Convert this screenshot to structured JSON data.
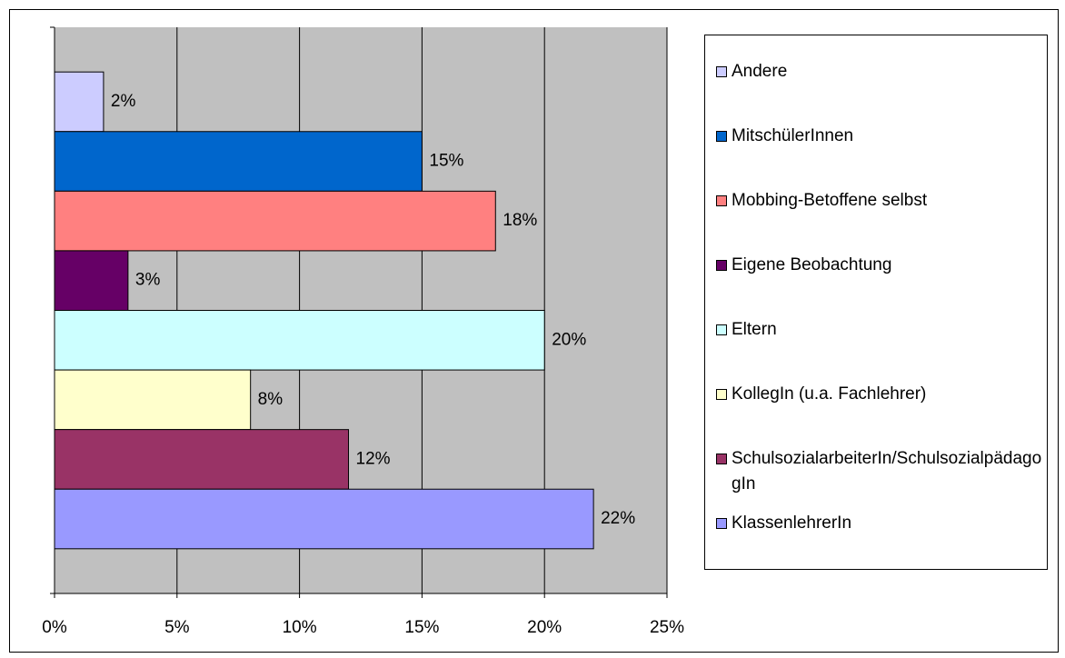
{
  "chart_data": {
    "type": "barh",
    "categories": [
      "Andere",
      "MitschülerInnen",
      "Mobbing-Betoffene selbst",
      "Eigene Beobachtung",
      "Eltern",
      "KollegIn (u.a. Fachlehrer)",
      "SchulsozialarbeiterIn/SchulsozialpädagogIn",
      "KlassenlehrerIn"
    ],
    "values": [
      2,
      15,
      18,
      3,
      20,
      8,
      12,
      22
    ],
    "value_labels": [
      "2%",
      "15%",
      "18%",
      "3%",
      "20%",
      "8%",
      "12%",
      "22%"
    ],
    "colors": [
      "#ccccff",
      "#0066cc",
      "#ff8080",
      "#660066",
      "#ccffff",
      "#ffffcc",
      "#993366",
      "#9999ff"
    ],
    "xlim": [
      0,
      25
    ],
    "xticks": [
      {
        "value": 0,
        "label": "0%"
      },
      {
        "value": 5,
        "label": "5%"
      },
      {
        "value": 10,
        "label": "10%"
      },
      {
        "value": 15,
        "label": "15%"
      },
      {
        "value": 20,
        "label": "20%"
      },
      {
        "value": 25,
        "label": "25%"
      }
    ],
    "grid": true,
    "legend": "right"
  }
}
